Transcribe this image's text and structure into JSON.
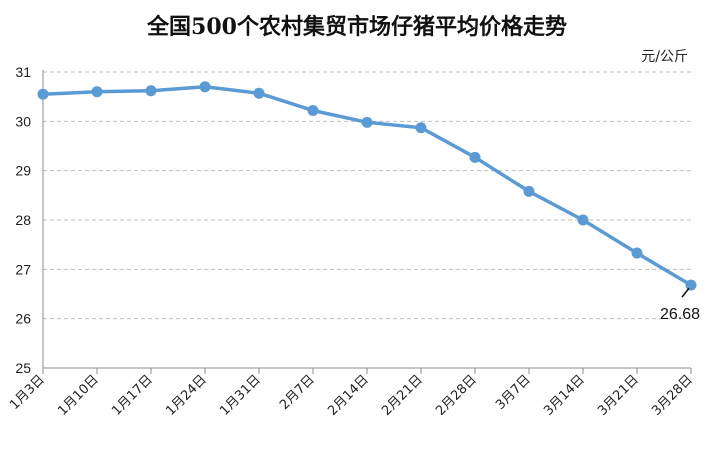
{
  "chart_data": {
    "type": "line",
    "title": "全国500个农村集贸市场仔猪平均价格走势",
    "unit": "元/公斤",
    "xlabel": "",
    "ylabel": "",
    "categories": [
      "1月3日",
      "1月10日",
      "1月17日",
      "1月24日",
      "1月31日",
      "2月7日",
      "2月14日",
      "2月21日",
      "2月28日",
      "3月7日",
      "3月14日",
      "3月21日",
      "3月28日"
    ],
    "series": [
      {
        "values": [
          30.55,
          30.6,
          30.62,
          30.7,
          30.57,
          30.22,
          29.98,
          29.87,
          29.27,
          28.58,
          28.0,
          27.33,
          26.68
        ]
      }
    ],
    "ylim": [
      25,
      31
    ],
    "yticks": [
      "25",
      "26",
      "27",
      "28",
      "29",
      "30",
      "31"
    ],
    "grid": "horizontal-dashed",
    "annotation": {
      "text": "26.68",
      "category": "3月28日"
    },
    "colors": {
      "line": "#5b9bd5",
      "grid": "#bfbfbf",
      "axis": "#8c8c8c"
    }
  }
}
